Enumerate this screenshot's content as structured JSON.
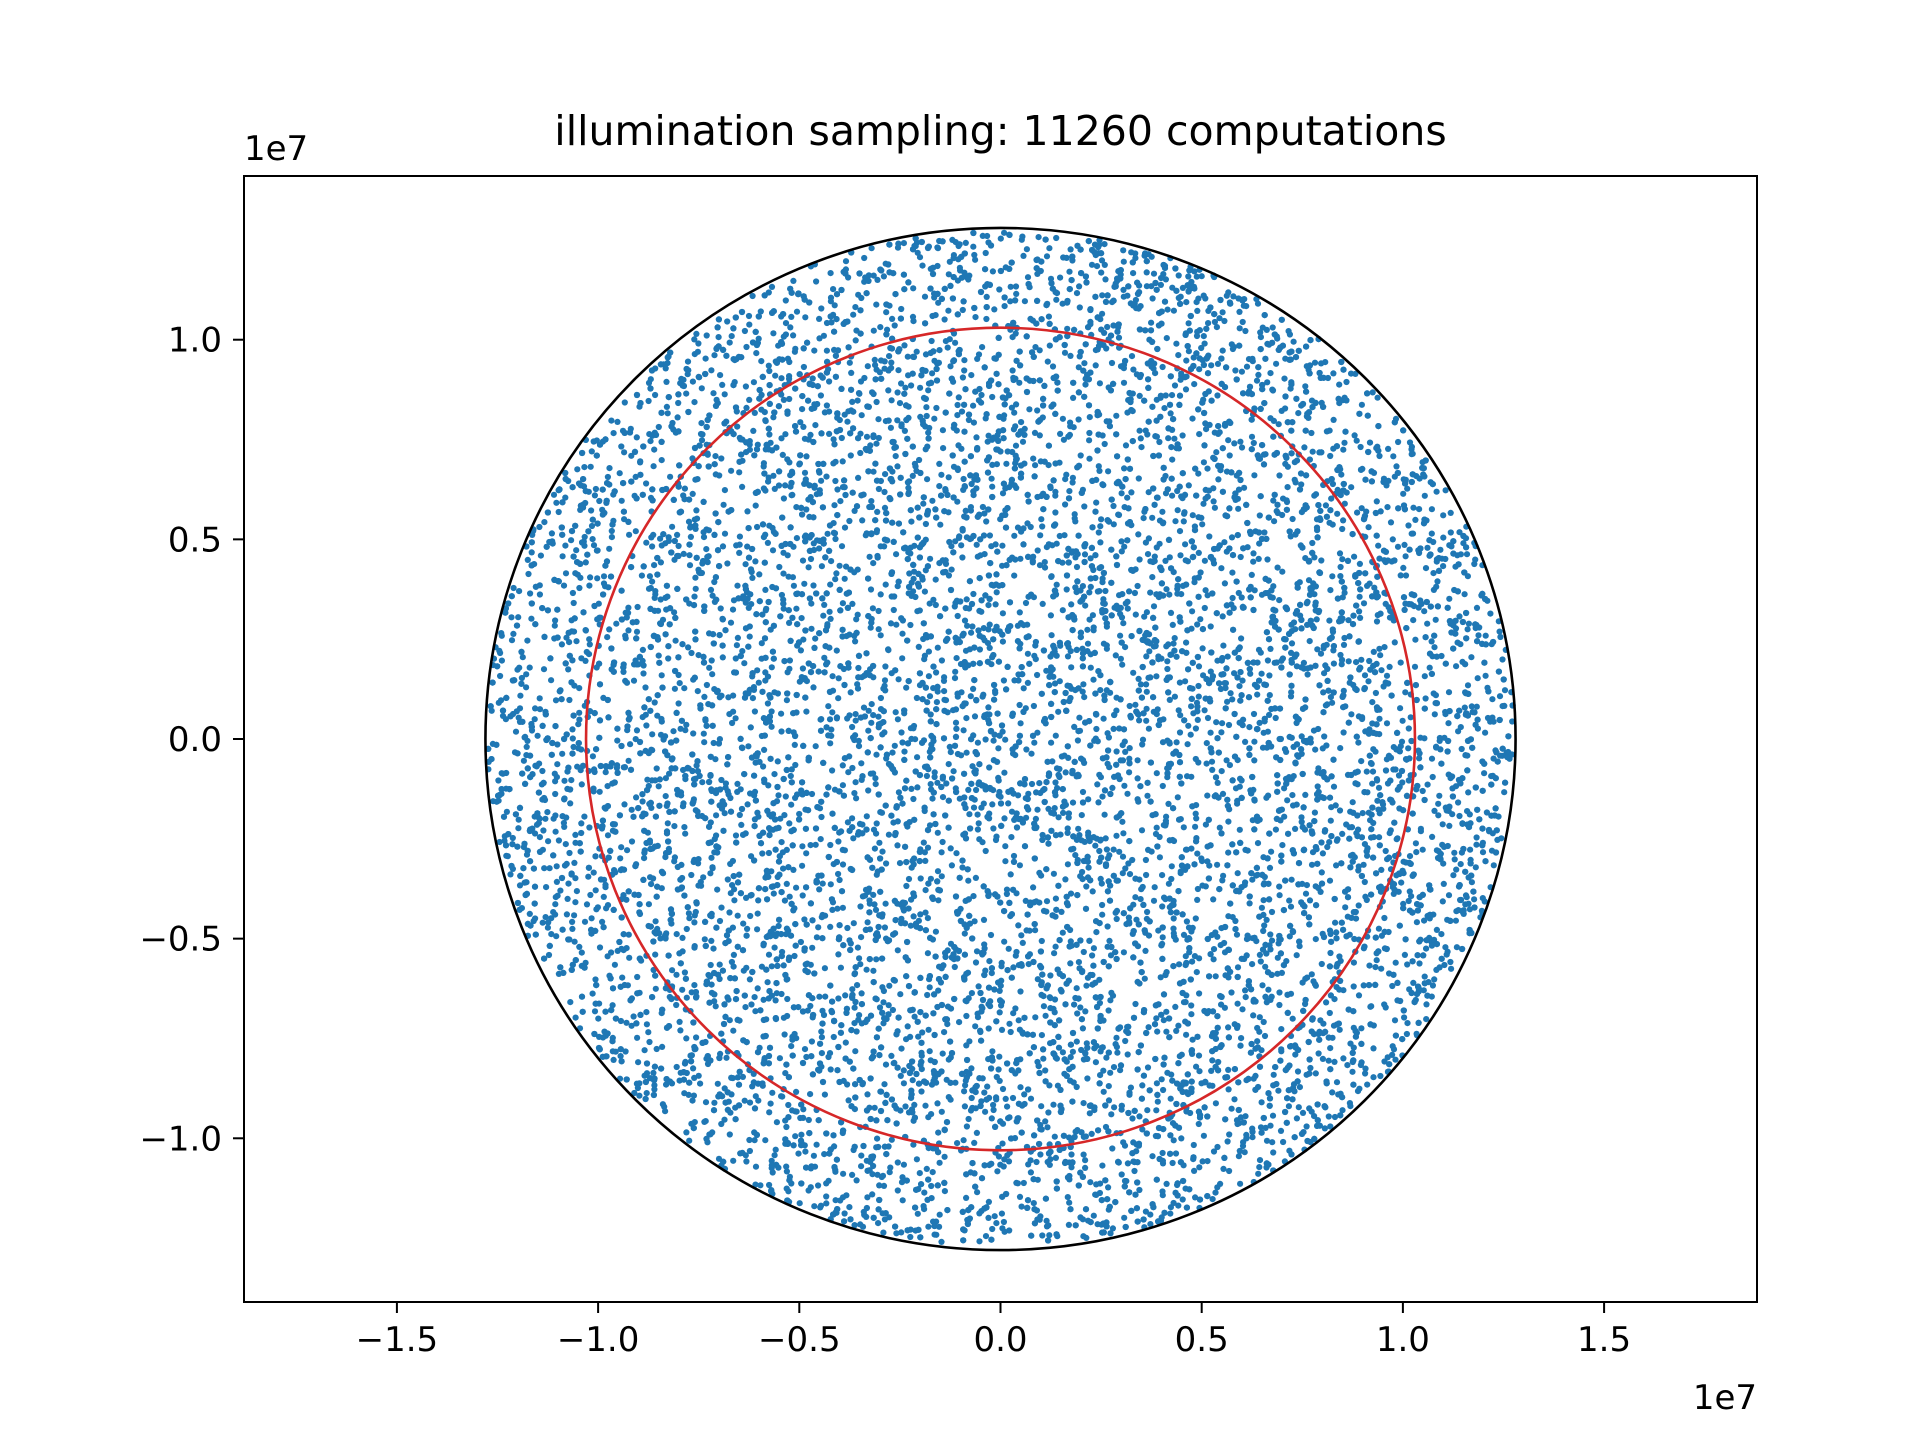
{
  "chart_data": {
    "type": "scatter",
    "title": "illumination sampling: 11260 computations",
    "xlabel": "",
    "ylabel": "",
    "x_offset_label": "1e7",
    "y_offset_label": "1e7",
    "xlim": [
      -1.88,
      1.88
    ],
    "ylim": [
      -1.41,
      1.41
    ],
    "x_ticks": [
      -1.5,
      -1.0,
      -0.5,
      0.0,
      0.5,
      1.0,
      1.5
    ],
    "x_tick_labels": [
      "−1.5",
      "−1.0",
      "−0.5",
      "0.0",
      "0.5",
      "1.0",
      "1.5"
    ],
    "y_ticks": [
      -1.0,
      -0.5,
      0.0,
      0.5,
      1.0
    ],
    "y_tick_labels": [
      "−1.0",
      "−0.5",
      "0.0",
      "0.5",
      "1.0"
    ],
    "grid": false,
    "legend": "none",
    "series": [
      {
        "kind": "points",
        "count": 11260,
        "distribution": "uniform over disk",
        "center": [
          0.0,
          0.0
        ],
        "radius": 1.28,
        "color": "#1f77b4"
      },
      {
        "kind": "circle",
        "center": [
          0.0,
          0.0
        ],
        "radius": 1.28,
        "color": "#000000"
      },
      {
        "kind": "circle",
        "center": [
          0.0,
          0.0
        ],
        "radius": 1.03,
        "color": "#d62728"
      }
    ]
  }
}
